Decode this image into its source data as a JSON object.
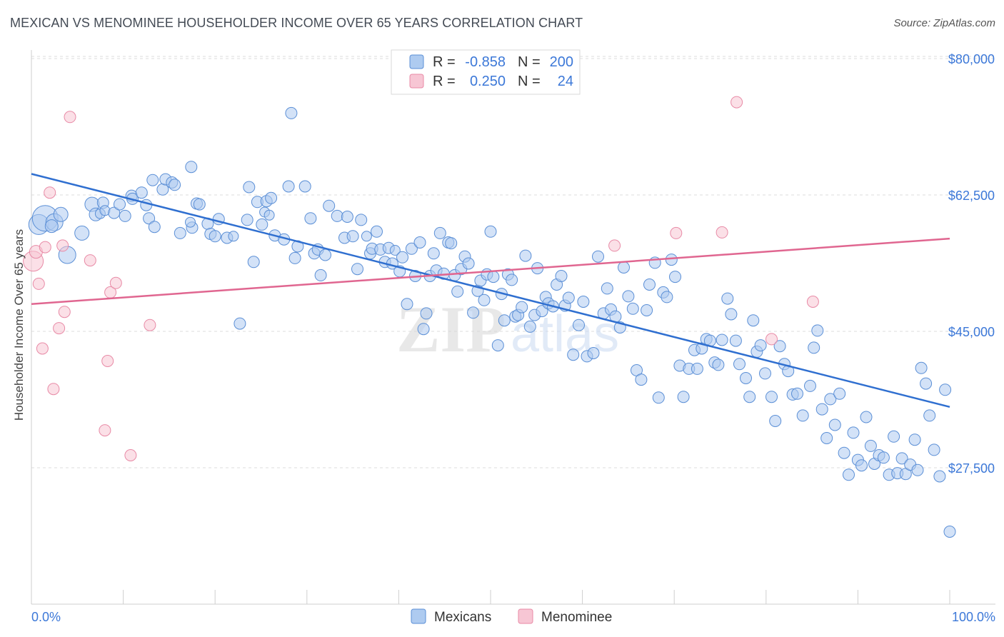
{
  "title": "MEXICAN VS MENOMINEE HOUSEHOLDER INCOME OVER 65 YEARS CORRELATION CHART",
  "source": "Source: ZipAtlas.com",
  "watermark": "ZIPatlas",
  "colors": {
    "blue_fill": "#aecbf0",
    "blue_stroke": "#5b8fd6",
    "blue_line": "#2f6fd0",
    "pink_fill": "#f7c6d4",
    "pink_stroke": "#e88aa6",
    "pink_line": "#e06690",
    "accent_text": "#3c78d8",
    "grid": "#dddddd"
  },
  "legend": {
    "r_label": "R =",
    "n_label": "N =",
    "series": [
      {
        "name": "Mexicans",
        "r": "-0.858",
        "n": "200"
      },
      {
        "name": "Menominee",
        "r": "0.250",
        "n": "24"
      }
    ]
  },
  "chart_data": {
    "type": "scatter",
    "title": "MEXICAN VS MENOMINEE HOUSEHOLDER INCOME OVER 65 YEARS CORRELATION CHART",
    "xlabel": "",
    "ylabel": "Householder Income Over 65 years",
    "xlim": [
      0,
      100
    ],
    "ylim": [
      10000,
      82000
    ],
    "x_tick_labels": [
      "0.0%",
      "100.0%"
    ],
    "y_ticks": [
      27500,
      45000,
      62500,
      80000
    ],
    "y_tick_labels": [
      "$27,500",
      "$45,000",
      "$62,500",
      "$80,000"
    ],
    "series": [
      {
        "name": "Mexicans",
        "trend": {
          "x": [
            0,
            100
          ],
          "y": [
            65200,
            35300
          ]
        },
        "points": [
          [
            0.8,
            58700,
            14
          ],
          [
            1.5,
            59500,
            18
          ],
          [
            2.5,
            59000,
            12
          ],
          [
            2.2,
            58500,
            9
          ],
          [
            3.2,
            60000,
            10
          ],
          [
            3.9,
            54800,
            12
          ],
          [
            5.5,
            57600,
            10
          ],
          [
            6.6,
            61300,
            10
          ],
          [
            7.8,
            61500,
            8
          ],
          [
            7.0,
            60000,
            9
          ],
          [
            7.5,
            60100,
            7
          ],
          [
            8.0,
            60500,
            7
          ],
          [
            9.0,
            60200,
            8
          ],
          [
            9.6,
            61300,
            8
          ],
          [
            10.2,
            59800,
            8
          ],
          [
            10.9,
            62400,
            8
          ],
          [
            11.0,
            62000,
            8
          ],
          [
            12.0,
            62800,
            8
          ],
          [
            12.8,
            59500,
            8
          ],
          [
            12.5,
            61200,
            8
          ],
          [
            13.2,
            64400,
            8
          ],
          [
            13.4,
            58400,
            8
          ],
          [
            14.3,
            63200,
            8
          ],
          [
            14.6,
            64500,
            8
          ],
          [
            15.3,
            64100,
            8
          ],
          [
            15.6,
            63800,
            8
          ],
          [
            16.2,
            57600,
            8
          ],
          [
            17.5,
            58300,
            8
          ],
          [
            17.3,
            59000,
            7
          ],
          [
            18.0,
            61400,
            8
          ],
          [
            18.3,
            61300,
            8
          ],
          [
            17.4,
            66100,
            8
          ],
          [
            19.2,
            58800,
            8
          ],
          [
            19.5,
            57500,
            8
          ],
          [
            20.0,
            57200,
            8
          ],
          [
            20.4,
            59400,
            8
          ],
          [
            21.3,
            57000,
            8
          ],
          [
            22.0,
            57200,
            7
          ],
          [
            22.7,
            46000,
            8
          ],
          [
            23.5,
            59300,
            8
          ],
          [
            23.7,
            63500,
            8
          ],
          [
            24.2,
            53900,
            8
          ],
          [
            24.6,
            61600,
            8
          ],
          [
            25.1,
            58700,
            8
          ],
          [
            25.4,
            60300,
            7
          ],
          [
            25.6,
            61700,
            8
          ],
          [
            25.9,
            59900,
            7
          ],
          [
            26.1,
            62100,
            8
          ],
          [
            26.5,
            57300,
            8
          ],
          [
            27.5,
            56800,
            8
          ],
          [
            28.0,
            63600,
            8
          ],
          [
            28.3,
            73000,
            8
          ],
          [
            28.7,
            54400,
            8
          ],
          [
            29.0,
            55900,
            8
          ],
          [
            29.8,
            63600,
            8
          ],
          [
            30.4,
            59500,
            8
          ],
          [
            30.8,
            55000,
            8
          ],
          [
            31.2,
            55500,
            8
          ],
          [
            31.5,
            52200,
            8
          ],
          [
            32.0,
            54800,
            8
          ],
          [
            32.4,
            61100,
            8
          ],
          [
            33.3,
            59800,
            8
          ],
          [
            34.1,
            57000,
            8
          ],
          [
            34.4,
            59700,
            8
          ],
          [
            35.0,
            57200,
            8
          ],
          [
            35.5,
            53000,
            8
          ],
          [
            35.9,
            59300,
            8
          ],
          [
            36.5,
            57200,
            7
          ],
          [
            36.9,
            55000,
            8
          ],
          [
            37.1,
            55600,
            8
          ],
          [
            37.6,
            57800,
            8
          ],
          [
            38.0,
            55500,
            8
          ],
          [
            38.5,
            53900,
            8
          ],
          [
            38.9,
            55700,
            8
          ],
          [
            39.3,
            53700,
            8
          ],
          [
            39.6,
            55400,
            7
          ],
          [
            40.1,
            52700,
            8
          ],
          [
            40.4,
            54500,
            8
          ],
          [
            40.9,
            48500,
            8
          ],
          [
            41.4,
            55600,
            8
          ],
          [
            41.8,
            52100,
            8
          ],
          [
            42.3,
            56400,
            8
          ],
          [
            42.7,
            45300,
            8
          ],
          [
            43.0,
            47300,
            8
          ],
          [
            43.4,
            52100,
            8
          ],
          [
            43.8,
            55000,
            8
          ],
          [
            44.1,
            52800,
            8
          ],
          [
            44.5,
            57600,
            8
          ],
          [
            44.9,
            52400,
            8
          ],
          [
            45.4,
            56400,
            8
          ],
          [
            45.7,
            56300,
            8
          ],
          [
            46.1,
            52200,
            8
          ],
          [
            46.4,
            50100,
            8
          ],
          [
            46.8,
            53000,
            8
          ],
          [
            47.2,
            54600,
            8
          ],
          [
            47.6,
            53700,
            8
          ],
          [
            48.1,
            47400,
            8
          ],
          [
            48.6,
            50200,
            8
          ],
          [
            48.9,
            51500,
            8
          ],
          [
            49.3,
            49000,
            8
          ],
          [
            49.6,
            52300,
            8
          ],
          [
            50.0,
            57800,
            8
          ],
          [
            50.3,
            52000,
            8
          ],
          [
            50.8,
            43200,
            8
          ],
          [
            51.2,
            49800,
            8
          ],
          [
            51.5,
            46400,
            8
          ],
          [
            51.9,
            52300,
            8
          ],
          [
            52.3,
            51600,
            8
          ],
          [
            52.7,
            46900,
            8
          ],
          [
            53.0,
            47100,
            8
          ],
          [
            53.4,
            48100,
            8
          ],
          [
            53.8,
            54700,
            8
          ],
          [
            54.3,
            45600,
            8
          ],
          [
            54.8,
            47100,
            8
          ],
          [
            55.1,
            53100,
            8
          ],
          [
            55.6,
            47600,
            8
          ],
          [
            56.0,
            49400,
            8
          ],
          [
            56.3,
            48600,
            8
          ],
          [
            56.8,
            48200,
            8
          ],
          [
            57.2,
            51000,
            8
          ],
          [
            57.7,
            52100,
            8
          ],
          [
            58.1,
            48300,
            8
          ],
          [
            58.5,
            49300,
            8
          ],
          [
            59.0,
            42000,
            8
          ],
          [
            59.6,
            45800,
            8
          ],
          [
            60.1,
            48800,
            8
          ],
          [
            60.5,
            41800,
            8
          ],
          [
            61.2,
            42200,
            8
          ],
          [
            61.7,
            54600,
            8
          ],
          [
            62.3,
            47300,
            8
          ],
          [
            62.7,
            50500,
            8
          ],
          [
            63.1,
            47800,
            8
          ],
          [
            63.6,
            46900,
            8
          ],
          [
            64.1,
            45500,
            8
          ],
          [
            64.5,
            53200,
            8
          ],
          [
            65.0,
            49500,
            8
          ],
          [
            65.5,
            47900,
            8
          ],
          [
            65.9,
            40000,
            8
          ],
          [
            66.4,
            38800,
            8
          ],
          [
            67.0,
            47700,
            8
          ],
          [
            67.3,
            51000,
            8
          ],
          [
            67.9,
            53800,
            8
          ],
          [
            68.3,
            36500,
            8
          ],
          [
            68.8,
            50000,
            8
          ],
          [
            69.2,
            49400,
            8
          ],
          [
            69.7,
            54200,
            8
          ],
          [
            70.1,
            52000,
            8
          ],
          [
            70.6,
            40600,
            8
          ],
          [
            71.0,
            36600,
            8
          ],
          [
            71.6,
            40200,
            8
          ],
          [
            72.2,
            42600,
            8
          ],
          [
            72.5,
            40200,
            8
          ],
          [
            73.0,
            42800,
            8
          ],
          [
            73.5,
            44000,
            8
          ],
          [
            73.9,
            43800,
            8
          ],
          [
            74.4,
            41000,
            8
          ],
          [
            74.8,
            40700,
            8
          ],
          [
            75.2,
            43900,
            8
          ],
          [
            75.8,
            49200,
            8
          ],
          [
            76.2,
            47200,
            8
          ],
          [
            76.7,
            43800,
            8
          ],
          [
            77.1,
            40800,
            8
          ],
          [
            77.8,
            39000,
            8
          ],
          [
            78.2,
            36600,
            8
          ],
          [
            78.6,
            46400,
            8
          ],
          [
            79.0,
            42400,
            8
          ],
          [
            79.4,
            43200,
            8
          ],
          [
            79.9,
            39600,
            8
          ],
          [
            80.6,
            36600,
            8
          ],
          [
            81.0,
            33500,
            8
          ],
          [
            81.5,
            43100,
            8
          ],
          [
            82.0,
            40800,
            8
          ],
          [
            82.4,
            39900,
            8
          ],
          [
            82.9,
            36900,
            8
          ],
          [
            83.4,
            37000,
            8
          ],
          [
            84.0,
            34200,
            8
          ],
          [
            84.8,
            38000,
            8
          ],
          [
            85.2,
            42900,
            8
          ],
          [
            85.6,
            45100,
            8
          ],
          [
            86.1,
            35000,
            8
          ],
          [
            86.6,
            31300,
            8
          ],
          [
            87.0,
            36300,
            8
          ],
          [
            87.5,
            33000,
            8
          ],
          [
            88.0,
            37000,
            8
          ],
          [
            88.5,
            29400,
            8
          ],
          [
            89.0,
            26600,
            8
          ],
          [
            89.5,
            32000,
            8
          ],
          [
            90.0,
            28500,
            8
          ],
          [
            90.4,
            27800,
            8
          ],
          [
            90.9,
            34000,
            8
          ],
          [
            91.4,
            30300,
            8
          ],
          [
            91.8,
            28000,
            8
          ],
          [
            92.3,
            29100,
            8
          ],
          [
            92.8,
            28800,
            8
          ],
          [
            93.4,
            26600,
            8
          ],
          [
            93.9,
            31500,
            8
          ],
          [
            94.3,
            26800,
            8
          ],
          [
            94.8,
            28700,
            8
          ],
          [
            95.2,
            26700,
            8
          ],
          [
            95.7,
            27900,
            8
          ],
          [
            96.2,
            31100,
            8
          ],
          [
            96.5,
            27200,
            8
          ],
          [
            96.9,
            40300,
            8
          ],
          [
            97.4,
            38300,
            8
          ],
          [
            97.8,
            34200,
            8
          ],
          [
            98.3,
            29800,
            8
          ],
          [
            98.9,
            26400,
            8
          ],
          [
            99.5,
            37500,
            8
          ],
          [
            100.0,
            19300,
            8
          ]
        ]
      },
      {
        "name": "Menominee",
        "trend": {
          "x": [
            0,
            100
          ],
          "y": [
            48500,
            56900
          ]
        },
        "points": [
          [
            0.2,
            54000,
            14
          ],
          [
            0.5,
            55200,
            9
          ],
          [
            0.8,
            51100,
            8
          ],
          [
            1.2,
            42800,
            8
          ],
          [
            1.5,
            55800,
            8
          ],
          [
            2.0,
            62800,
            8
          ],
          [
            2.4,
            37600,
            8
          ],
          [
            3.0,
            45400,
            8
          ],
          [
            3.4,
            56000,
            8
          ],
          [
            3.6,
            47500,
            8
          ],
          [
            4.2,
            72500,
            8
          ],
          [
            6.4,
            54100,
            8
          ],
          [
            8.0,
            32300,
            8
          ],
          [
            8.3,
            41200,
            8
          ],
          [
            8.6,
            50000,
            8
          ],
          [
            9.2,
            51200,
            8
          ],
          [
            10.8,
            29100,
            8
          ],
          [
            12.9,
            45800,
            8
          ],
          [
            63.5,
            56000,
            8
          ],
          [
            70.2,
            57600,
            8
          ],
          [
            75.2,
            57700,
            8
          ],
          [
            76.8,
            74400,
            8
          ],
          [
            80.6,
            44000,
            8
          ],
          [
            85.1,
            48800,
            8
          ]
        ]
      }
    ]
  }
}
